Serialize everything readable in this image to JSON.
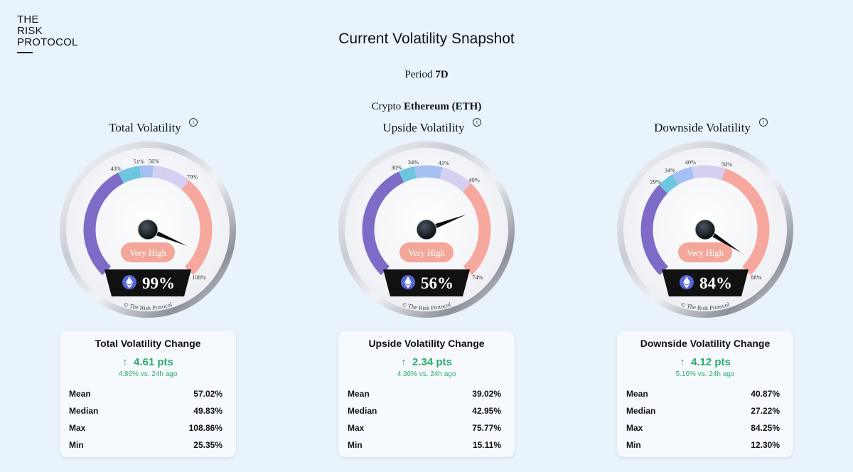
{
  "logo": {
    "line1": "THE",
    "line2": "RISK",
    "line3": "PROTOCOL"
  },
  "title": "Current Volatility Snapshot",
  "period": {
    "label": "Period",
    "value": "7D"
  },
  "crypto": {
    "label": "Crypto",
    "value": "Ethereum (ETH)"
  },
  "info_icon": "info-icon",
  "colors": {
    "purple": "#7e6bc8",
    "blue": "#6cc6dd",
    "lightblue": "#a7c0f3",
    "lavender": "#d5cff1",
    "salmon": "#f6a89f",
    "badge": "#f3a79a",
    "green": "#2eaa6b",
    "eth": "#5468d6"
  },
  "chart_data": [
    {
      "type": "gauge",
      "title": "Total Volatility",
      "value": 99,
      "value_label": "99%",
      "status": "Very High",
      "thresholds": [
        43,
        51,
        56,
        70
      ],
      "threshold_labels": [
        "43%",
        "51%",
        "56%",
        "70%"
      ],
      "max": 108,
      "max_label": "108%",
      "copyright": "© The Risk Protocol",
      "change": {
        "title": "Total Volatility Change",
        "points": "4.61 pts",
        "sub": "4.86% vs. 24h ago",
        "stats": [
          {
            "label": "Mean",
            "value": "57.02%"
          },
          {
            "label": "Median",
            "value": "49.83%"
          },
          {
            "label": "Max",
            "value": "108.86%"
          },
          {
            "label": "Min",
            "value": "25.35%"
          }
        ]
      }
    },
    {
      "type": "gauge",
      "title": "Upside Volatility",
      "value": 56,
      "value_label": "56%",
      "status": "Very High",
      "thresholds": [
        30,
        34,
        41,
        49
      ],
      "threshold_labels": [
        "30%",
        "34%",
        "41%",
        "49%"
      ],
      "max": 74,
      "max_label": "74%",
      "copyright": "© The Risk Protocol",
      "change": {
        "title": "Upside Volatility Change",
        "points": "2.34 pts",
        "sub": "4.36% vs. 24h ago",
        "stats": [
          {
            "label": "Mean",
            "value": "39.02%"
          },
          {
            "label": "Median",
            "value": "42.95%"
          },
          {
            "label": "Max",
            "value": "75.77%"
          },
          {
            "label": "Min",
            "value": "15.11%"
          }
        ]
      }
    },
    {
      "type": "gauge",
      "title": "Downside Volatility",
      "value": 84,
      "value_label": "84%",
      "status": "Very High",
      "thresholds": [
        29,
        34,
        40,
        50
      ],
      "threshold_labels": [
        "29%",
        "34%",
        "40%",
        "50%"
      ],
      "max": 88,
      "max_label": "88%",
      "copyright": "© The Risk Protocol",
      "change": {
        "title": "Downside Volatility Change",
        "points": "4.12 pts",
        "sub": "5.16% vs. 24h ago",
        "stats": [
          {
            "label": "Mean",
            "value": "40.87%"
          },
          {
            "label": "Median",
            "value": "27.22%"
          },
          {
            "label": "Max",
            "value": "84.25%"
          },
          {
            "label": "Min",
            "value": "12.30%"
          }
        ]
      }
    }
  ]
}
